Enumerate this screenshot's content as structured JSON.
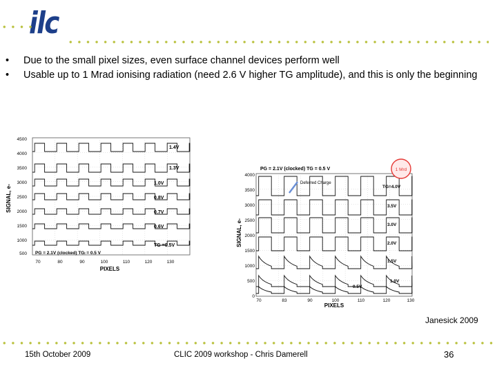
{
  "header": {
    "logo_text": "ilc"
  },
  "bullets": [
    {
      "marker": "•",
      "text": "Due to the small pixel sizes, even surface channel devices perform well"
    },
    {
      "marker": "•",
      "text": "Usable up to 1 Mrad ionising radiation (need 2.6 V higher TG amplitude), and this is only the beginning"
    }
  ],
  "figure_left": {
    "ylabel": "SIGNAL, e-",
    "xlabel": "PIXELS",
    "y_ticks": [
      "4500",
      "4000",
      "3500",
      "3000",
      "2500",
      "2000",
      "1500",
      "1000",
      "500"
    ],
    "x_ticks": [
      "70",
      "80",
      "90",
      "100",
      "110",
      "120",
      "130"
    ],
    "trace_labels": [
      "1.4V",
      "1.3V",
      "1.0V",
      "0.8V",
      "0.7V",
      "0.6V",
      "TG =0.5V"
    ],
    "note": "PG = 2.1V (clocked)   TGₗ = 0.5 V"
  },
  "figure_right": {
    "header": "PG = 2.1V (clocked)   TG = 0.5 V",
    "badge": "1 Mrd",
    "annotation": "Deferred Charge",
    "ylabel": "SIGNAL, e-",
    "xlabel": "PIXELS",
    "y_ticks": [
      "4000",
      "3500",
      "3000",
      "2500",
      "2000",
      "1500",
      "1000",
      "500",
      "0"
    ],
    "x_ticks": [
      "70",
      "83",
      "90",
      "100",
      "110",
      "120",
      "130"
    ],
    "trace_labels": [
      "TG=4.0V",
      "3.5V",
      "3.0V",
      "2.0V",
      "1.5V",
      "1.0V",
      "0.5V"
    ]
  },
  "credit": "Janesick 2009",
  "footer": {
    "date": "15th October 2009",
    "event": "CLIC 2009 workshop - Chris Damerell",
    "page": "36"
  },
  "colors": {
    "logo": "#1d3f8a",
    "dots": "#b8c03a",
    "badge": "#e53935"
  }
}
